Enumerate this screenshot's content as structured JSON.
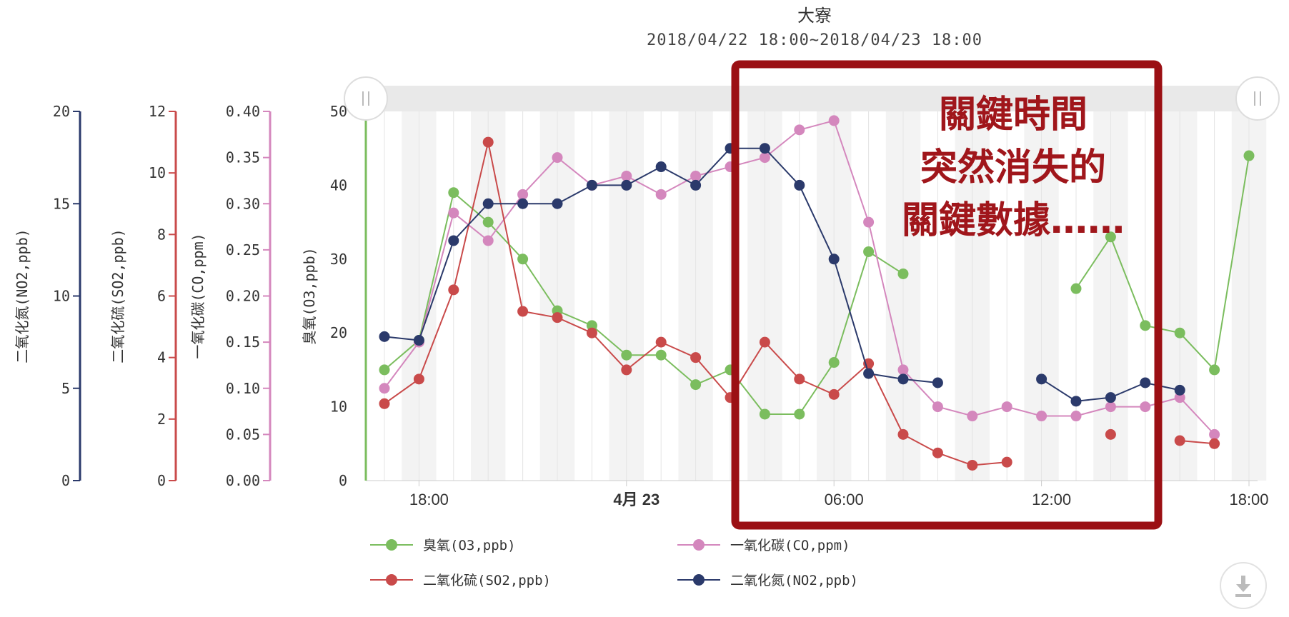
{
  "chart_data": {
    "type": "line",
    "title": "大寮",
    "subtitle": "2018/04/22 18:00~2018/04/23 18:00",
    "x": [
      "17:00",
      "18:00",
      "19:00",
      "20:00",
      "21:00",
      "22:00",
      "23:00",
      "00:00",
      "01:00",
      "02:00",
      "03:00",
      "04:00",
      "05:00",
      "06:00",
      "07:00",
      "08:00",
      "09:00",
      "10:00",
      "11:00",
      "12:00",
      "13:00",
      "14:00",
      "15:00",
      "16:00",
      "17:00",
      "18:00"
    ],
    "x_ticks": [
      {
        "at": "18:00",
        "label": "18:00",
        "bold": false
      },
      {
        "at": "00:00",
        "label": "4月 23",
        "bold": true
      },
      {
        "at": "06:00",
        "label": "06:00",
        "bold": false
      },
      {
        "at": "12:00",
        "label": "12:00",
        "bold": false
      },
      {
        "at": "18:00b",
        "label": "18:00",
        "bold": false
      }
    ],
    "y_axes": [
      {
        "id": "no2",
        "label": "二氧化氮(NO2,ppb)",
        "min": 0,
        "max": 20,
        "ticks": [
          "0",
          "5",
          "10",
          "15",
          "20"
        ],
        "color": "#2b3a6b"
      },
      {
        "id": "so2",
        "label": "二氧化硫(SO2,ppb)",
        "min": 0,
        "max": 12,
        "ticks": [
          "0",
          "2",
          "4",
          "6",
          "8",
          "10",
          "12"
        ],
        "color": "#c94a4a"
      },
      {
        "id": "co",
        "label": "一氧化碳(CO,ppm)",
        "min": 0,
        "max": 0.4,
        "ticks": [
          "0.00",
          "0.05",
          "0.10",
          "0.15",
          "0.20",
          "0.25",
          "0.30",
          "0.35",
          "0.40"
        ],
        "color": "#d487bd"
      },
      {
        "id": "o3",
        "label": "臭氧(O3,ppb)",
        "min": 0,
        "max": 50,
        "ticks": [
          "0",
          "10",
          "20",
          "30",
          "40",
          "50"
        ],
        "color": "#7bbd5e"
      }
    ],
    "series": [
      {
        "name": "臭氧(O3,ppb)",
        "axis": "o3",
        "color": "#7bbd5e",
        "values": [
          15,
          19,
          39,
          35,
          30,
          23,
          21,
          17,
          17,
          13,
          15,
          9,
          9,
          16,
          31,
          28,
          null,
          null,
          null,
          null,
          26,
          33,
          21,
          20,
          15,
          44
        ]
      },
      {
        "name": "一氧化碳(CO,ppm)",
        "axis": "co",
        "color": "#d487bd",
        "values": [
          0.1,
          0.15,
          0.29,
          0.26,
          0.31,
          0.35,
          0.32,
          0.33,
          0.31,
          0.33,
          0.34,
          0.35,
          0.38,
          0.39,
          0.28,
          0.12,
          0.08,
          0.07,
          0.08,
          0.07,
          0.07,
          0.08,
          0.08,
          0.09,
          0.05,
          null
        ]
      },
      {
        "name": "二氧化硫(SO2,ppb)",
        "axis": "so2",
        "color": "#c94a4a",
        "values": [
          2.5,
          3.3,
          6.2,
          11.0,
          5.5,
          5.3,
          4.8,
          3.6,
          4.5,
          4.0,
          2.7,
          4.5,
          3.3,
          2.8,
          3.8,
          1.5,
          0.9,
          0.5,
          0.6,
          null,
          null,
          1.5,
          null,
          1.3,
          1.2,
          null
        ]
      },
      {
        "name": "二氧化氮(NO2,ppb)",
        "axis": "no2",
        "color": "#2b3a6b",
        "values": [
          7.8,
          7.6,
          13.0,
          15.0,
          15.0,
          15.0,
          16.0,
          16.0,
          17.0,
          16.0,
          18.0,
          18.0,
          16.0,
          12.0,
          5.8,
          5.5,
          5.3,
          null,
          null,
          5.5,
          4.3,
          4.5,
          5.3,
          4.9,
          null,
          null
        ]
      }
    ],
    "legend": {
      "position": "bottom-left",
      "entries": [
        {
          "label": "臭氧(O3,ppb)",
          "color": "#7bbd5e"
        },
        {
          "label": "一氧化碳(CO,ppm)",
          "color": "#d487bd"
        },
        {
          "label": "二氧化硫(SO2,ppb)",
          "color": "#c94a4a"
        },
        {
          "label": "二氧化氮(NO2,ppb)",
          "color": "#2b3a6b"
        }
      ]
    },
    "grid": true
  },
  "annotation": {
    "lines": [
      "關鍵時間",
      "突然消失的",
      "關鍵數據……"
    ],
    "box_color": "#9b1014"
  },
  "controls": {
    "scrollbar_left_icon": "drag-handle-icon",
    "scrollbar_right_icon": "drag-handle-icon",
    "download_icon": "download-icon"
  }
}
